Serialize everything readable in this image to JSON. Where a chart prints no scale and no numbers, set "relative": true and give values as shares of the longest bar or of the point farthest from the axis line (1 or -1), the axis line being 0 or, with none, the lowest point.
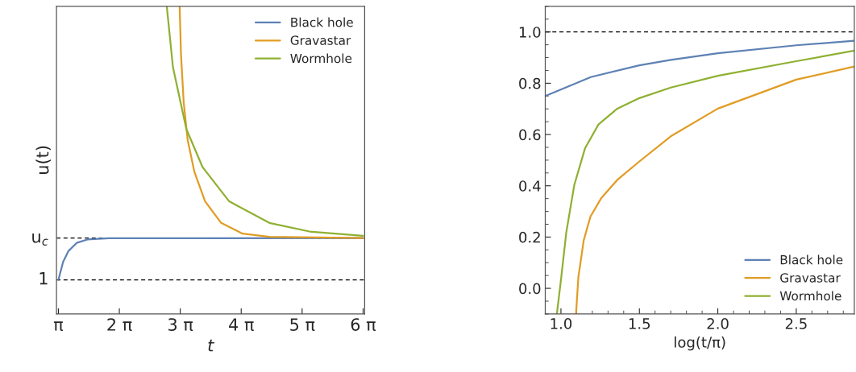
{
  "chart_data": [
    {
      "type": "line",
      "xlabel": "t",
      "ylabel": "u(t)",
      "xlim": [
        3.044,
        18.931
      ],
      "relative": true,
      "xticks": [
        {
          "value": 3.1416,
          "label": "π"
        },
        {
          "value": 6.2832,
          "label": "2 π"
        },
        {
          "value": 9.4248,
          "label": "3 π"
        },
        {
          "value": 12.5664,
          "label": "4 π"
        },
        {
          "value": 15.708,
          "label": "5 π"
        },
        {
          "value": 18.8496,
          "label": "6 π"
        }
      ],
      "ref_lines": [
        {
          "axis": "y",
          "value": 0.111,
          "line_style": "dashed",
          "color": "#000000"
        },
        {
          "axis": "y",
          "value": 0.247,
          "line_style": "dashed",
          "color": "#000000"
        }
      ],
      "annotations": [
        "1",
        "u$_{c}$"
      ],
      "legend": "top right",
      "line_style": "solid",
      "marker": "none",
      "grid": false,
      "series": [
        {
          "name": "Black hole",
          "color": "#5e81b5",
          "x": [
            3.142,
            3.389,
            3.666,
            4.081,
            4.634,
            5.736,
            18.85
          ],
          "values": [
            0.111,
            0.17,
            0.205,
            0.231,
            0.242,
            0.246,
            0.247
          ]
        },
        {
          "name": "Gravastar",
          "color": "#e19c24",
          "x": [
            9.393,
            9.462,
            9.601,
            9.808,
            10.153,
            10.706,
            11.533,
            12.639,
            14.018,
            18.85
          ],
          "values": [
            1.0,
            0.845,
            0.688,
            0.565,
            0.462,
            0.366,
            0.296,
            0.261,
            0.251,
            0.247
          ]
        },
        {
          "name": "Wormhole",
          "color": "#8fb032",
          "x": [
            8.73,
            9.048,
            9.739,
            10.568,
            11.947,
            14.018,
            16.088,
            18.85
          ],
          "values": [
            1.0,
            0.802,
            0.601,
            0.478,
            0.366,
            0.296,
            0.268,
            0.254
          ]
        }
      ]
    },
    {
      "type": "line",
      "xlabel": "log(t/π)",
      "xlim": [
        0.9,
        2.87
      ],
      "ylim": [
        -0.1,
        1.1
      ],
      "xticks": [
        {
          "value": 1,
          "label": "1.0"
        },
        1.5,
        {
          "value": 2,
          "label": "2.0"
        },
        2.5
      ],
      "yticks": [
        {
          "value": 0,
          "label": "0.0"
        },
        0.2,
        0.4,
        0.6,
        0.8,
        {
          "value": 1,
          "label": "1.0"
        }
      ],
      "ref_lines": [
        {
          "axis": "y",
          "value": 1.0,
          "line_style": "dashed",
          "color": "#000000"
        }
      ],
      "legend": "bottom right",
      "line_style": "solid",
      "marker": "none",
      "grid": false,
      "series": [
        {
          "name": "Black hole",
          "color": "#5e81b5",
          "x": [
            0.9,
            1.19,
            1.5,
            1.7,
            2.0,
            2.5,
            2.87
          ],
          "values": [
            0.75,
            0.824,
            0.87,
            0.891,
            0.917,
            0.948,
            0.966
          ]
        },
        {
          "name": "Gravastar",
          "color": "#e19c24",
          "x": [
            1.096,
            1.111,
            1.145,
            1.188,
            1.256,
            1.359,
            1.5,
            1.7,
            2.0,
            2.5,
            2.87
          ],
          "values": [
            -0.1,
            0.043,
            0.187,
            0.28,
            0.351,
            0.423,
            0.495,
            0.593,
            0.701,
            0.814,
            0.865
          ]
        },
        {
          "name": "Wormhole",
          "color": "#8fb032",
          "x": [
            0.974,
            1.0,
            1.034,
            1.085,
            1.154,
            1.239,
            1.359,
            1.5,
            1.7,
            2.0,
            2.5,
            2.87
          ],
          "values": [
            -0.1,
            0.033,
            0.218,
            0.403,
            0.547,
            0.639,
            0.701,
            0.742,
            0.783,
            0.829,
            0.886,
            0.927
          ]
        }
      ]
    }
  ]
}
